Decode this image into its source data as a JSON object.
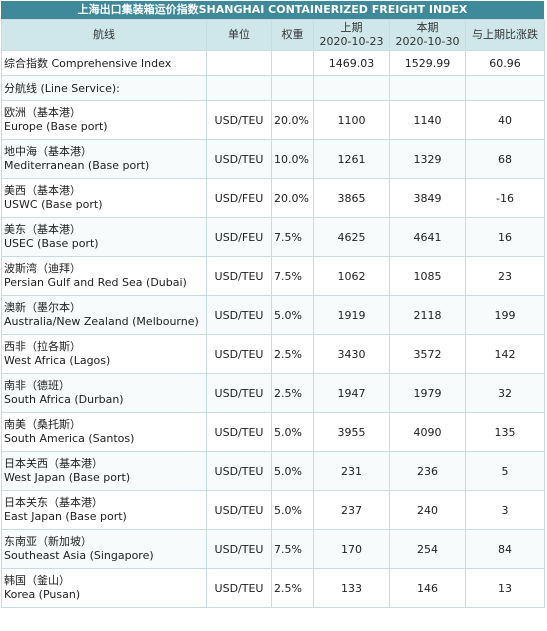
{
  "title": "上海出口集装箱运价指数SHANGHAI CONTAINERIZED FREIGHT INDEX",
  "headers": {
    "route": "航线",
    "unit": "单位",
    "weight": "权重",
    "prev_label": "上期",
    "prev_date": "2020-10-23",
    "curr_label": "本期",
    "curr_date": "2020-10-30",
    "change": "与上期比涨跌"
  },
  "composite": {
    "name": "综合指数 Comprehensive Index",
    "prev": "1469.03",
    "curr": "1529.99",
    "change": "60.96"
  },
  "section_label": "分航线 (Line Service):",
  "rows": [
    {
      "cn": "欧洲（基本港）",
      "en": "Europe (Base port)",
      "unit": "USD/TEU",
      "weight": "20.0%",
      "prev": "1100",
      "curr": "1140",
      "change": "40"
    },
    {
      "cn": "地中海（基本港）",
      "en": "Mediterranean (Base port)",
      "unit": "USD/TEU",
      "weight": "10.0%",
      "prev": "1261",
      "curr": "1329",
      "change": "68"
    },
    {
      "cn": "美西（基本港）",
      "en": "USWC (Base port)",
      "unit": "USD/FEU",
      "weight": "20.0%",
      "prev": "3865",
      "curr": "3849",
      "change": "-16"
    },
    {
      "cn": "美东（基本港）",
      "en": "USEC (Base port)",
      "unit": "USD/FEU",
      "weight": "7.5%",
      "prev": "4625",
      "curr": "4641",
      "change": "16"
    },
    {
      "cn": "波斯湾（迪拜）",
      "en": "Persian Gulf and Red Sea (Dubai)",
      "unit": "USD/TEU",
      "weight": "7.5%",
      "prev": "1062",
      "curr": "1085",
      "change": "23"
    },
    {
      "cn": "澳新（墨尔本）",
      "en": "Australia/New Zealand (Melbourne)",
      "unit": "USD/TEU",
      "weight": "5.0%",
      "prev": "1919",
      "curr": "2118",
      "change": "199"
    },
    {
      "cn": "西非（拉各斯）",
      "en": "West Africa (Lagos)",
      "unit": "USD/TEU",
      "weight": "2.5%",
      "prev": "3430",
      "curr": "3572",
      "change": "142"
    },
    {
      "cn": "南非（德班）",
      "en": "South Africa (Durban)",
      "unit": "USD/TEU",
      "weight": "2.5%",
      "prev": "1947",
      "curr": "1979",
      "change": "32"
    },
    {
      "cn": "南美（桑托斯）",
      "en": "South America (Santos)",
      "unit": "USD/TEU",
      "weight": "5.0%",
      "prev": "3955",
      "curr": "4090",
      "change": "135"
    },
    {
      "cn": "日本关西（基本港）",
      "en": "West Japan (Base port)",
      "unit": "USD/TEU",
      "weight": "5.0%",
      "prev": "231",
      "curr": "236",
      "change": "5"
    },
    {
      "cn": "日本关东（基本港）",
      "en": "East Japan (Base port)",
      "unit": "USD/TEU",
      "weight": "5.0%",
      "prev": "237",
      "curr": "240",
      "change": "3"
    },
    {
      "cn": "东南亚（新加坡）",
      "en": "Southeast Asia (Singapore)",
      "unit": "USD/TEU",
      "weight": "7.5%",
      "prev": "170",
      "curr": "254",
      "change": "84"
    },
    {
      "cn": "韩国（釜山）",
      "en": "Korea (Pusan)",
      "unit": "USD/TEU",
      "weight": "2.5%",
      "prev": "133",
      "curr": "146",
      "change": "13"
    }
  ]
}
